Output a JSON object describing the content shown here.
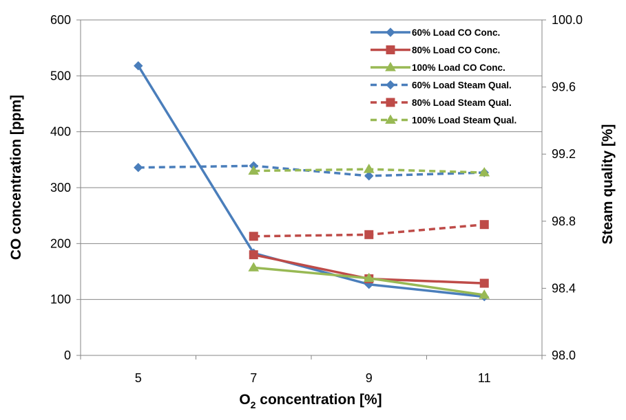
{
  "chart_data": {
    "type": "line",
    "x": [
      5,
      7,
      9,
      11
    ],
    "x_tick_labels": [
      "5",
      "7",
      "9",
      "11"
    ],
    "xlabel_main": "O",
    "xlabel_sub": "2",
    "xlabel_rest": " concentration [%]",
    "ylabel_left": "CO concentration [ppm]",
    "ylabel_right": "Steam quality [%]",
    "ylim_left": [
      0,
      600
    ],
    "ylim_right": [
      98.0,
      100.0
    ],
    "yticks_left": [
      "0",
      "100",
      "200",
      "300",
      "400",
      "500",
      "600"
    ],
    "yticks_right": [
      "98.0",
      "98.4",
      "98.8",
      "99.2",
      "99.6",
      "100.0"
    ],
    "grid": "horizontal",
    "legend_position": "top-right",
    "series": [
      {
        "name": "60% Load CO Conc.",
        "axis": "left",
        "color": "#4A7EBB",
        "marker": "diamond",
        "dash": "solid",
        "values": [
          518,
          183,
          127,
          105
        ]
      },
      {
        "name": "80% Load CO Conc.",
        "axis": "left",
        "color": "#BE4B48",
        "marker": "square",
        "dash": "solid",
        "values": [
          null,
          180,
          137,
          129
        ]
      },
      {
        "name": "100% Load CO Conc.",
        "axis": "left",
        "color": "#98B954",
        "marker": "triangle",
        "dash": "solid",
        "values": [
          null,
          157,
          138,
          108
        ]
      },
      {
        "name": "60% Load Steam Qual.",
        "axis": "right",
        "color": "#4A7EBB",
        "marker": "diamond",
        "dash": "dashed",
        "values": [
          99.12,
          99.13,
          99.07,
          99.09
        ]
      },
      {
        "name": "80% Load Steam Qual.",
        "axis": "right",
        "color": "#BE4B48",
        "marker": "square",
        "dash": "dashed",
        "values": [
          null,
          98.71,
          98.72,
          98.78
        ]
      },
      {
        "name": "100% Load Steam Qual.",
        "axis": "right",
        "color": "#98B954",
        "marker": "triangle",
        "dash": "dashed",
        "values": [
          null,
          99.1,
          99.11,
          99.09
        ]
      }
    ]
  }
}
